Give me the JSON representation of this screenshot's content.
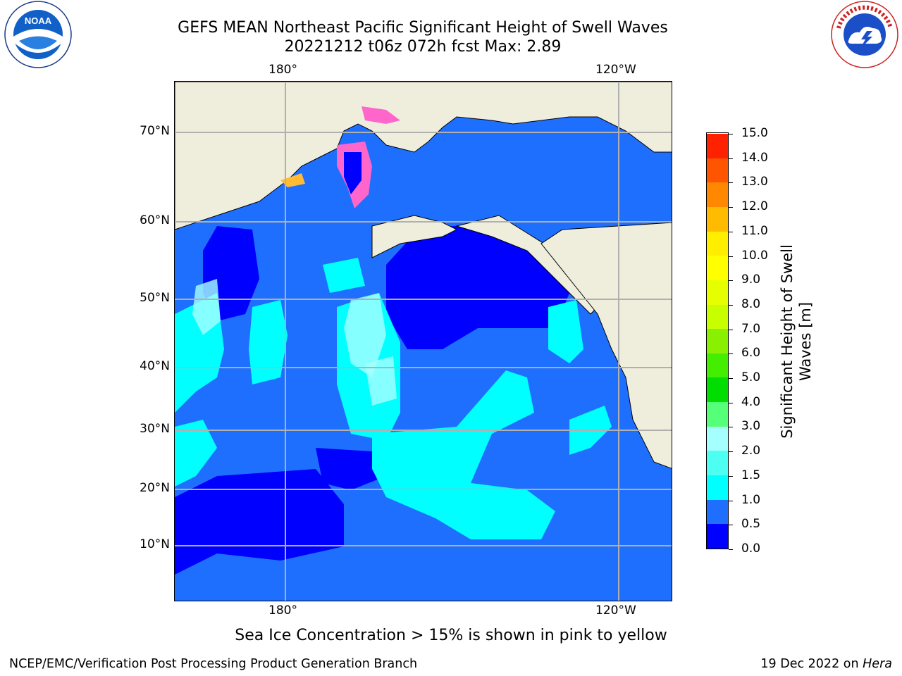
{
  "header": {
    "title_line1": "GEFS MEAN Northeast Pacific Significant Height of Swell Waves",
    "title_line2": "20221212 t06z 072h fcst   Max: 2.89"
  },
  "logos": {
    "left": "NOAA",
    "left_ring_text": "NATIONAL OCEANIC AND ATMOSPHERIC ADMINISTRATION · U.S. DEPARTMENT OF COMMERCE",
    "right_ring_text": "NATIONAL WEATHER SERVICE"
  },
  "map": {
    "top_lon_labels": [
      "180°",
      "120°W"
    ],
    "bottom_lon_labels": [
      "180°",
      "120°W"
    ],
    "lat_labels": [
      "70°N",
      "60°N",
      "50°N",
      "40°N",
      "30°N",
      "20°N",
      "10°N"
    ]
  },
  "colorbar": {
    "label": "Significant Height of Swell Waves [m]",
    "label_line1": "Significant Height of Swell",
    "label_line2": "Waves [m]",
    "ticks": [
      "15.0",
      "14.0",
      "13.0",
      "12.0",
      "11.0",
      "10.0",
      "9.0",
      "8.0",
      "7.0",
      "6.0",
      "5.0",
      "4.0",
      "3.0",
      "2.0",
      "1.5",
      "1.0",
      "0.5",
      "0.0"
    ],
    "colors_bottom_to_top": [
      "#0000ff",
      "#1f6fff",
      "#00ffff",
      "#4dfff0",
      "#a6ffff",
      "#55ff77",
      "#00dd00",
      "#44ee00",
      "#88f000",
      "#c8ff00",
      "#e6ff00",
      "#ffff00",
      "#ffee00",
      "#ffbb00",
      "#ff8800",
      "#ff5500",
      "#ff2200",
      "#ff0000"
    ]
  },
  "note": "Sea Ice Concentration > 15% is shown in pink to yellow",
  "footer": {
    "left": "NCEP/EMC/Verification Post Processing Product Generation Branch",
    "right_date": "19 Dec 2022 on",
    "right_machine": "Hera"
  }
}
